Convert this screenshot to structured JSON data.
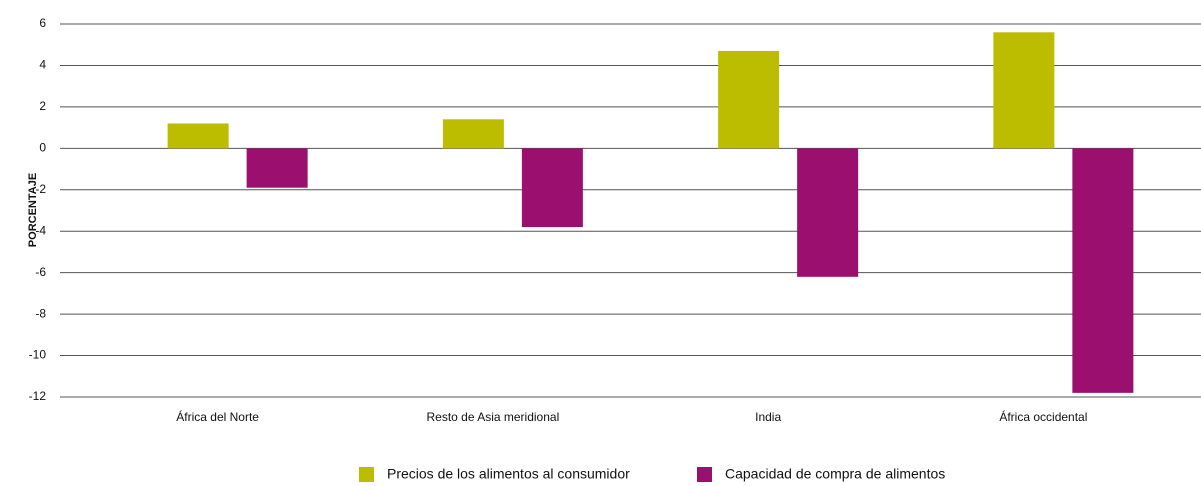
{
  "chart_data": {
    "type": "bar",
    "y_label": "PORCENTAJE",
    "categories": [
      "África del Norte",
      "Resto de Asia meridional",
      "India",
      "África occidental"
    ],
    "series": [
      {
        "name": "Precios de los alimentos al consumidor",
        "color": "#bcbd00",
        "values": [
          1.2,
          1.4,
          4.7,
          5.6
        ]
      },
      {
        "name": "Capacidad de compra de alimentos",
        "color": "#9b0f6e",
        "values": [
          -1.9,
          -3.8,
          -6.2,
          -11.8
        ]
      }
    ],
    "ylim": [
      -12,
      6
    ],
    "yticks": [
      -12,
      -10,
      -8,
      -6,
      -4,
      -2,
      0,
      2,
      4,
      6
    ],
    "grid": true
  }
}
